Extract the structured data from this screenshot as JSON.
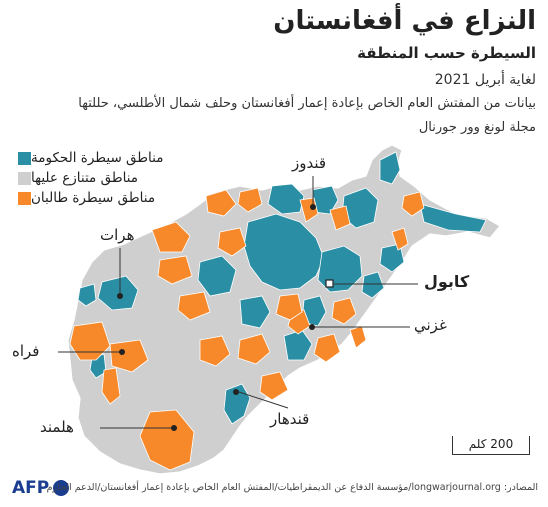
{
  "title": "النزاع في أفغانستان",
  "subtitle": "السيطرة حسب المنطقة",
  "date_text": "لغاية أبريل 2021",
  "source_text_line1": "بيانات من المفتش العام الخاص بإعادة إعمار أفغانستان وحلف شمال الأطلسي، حللتها",
  "source_text_line2": "مجلة لونغ وور جورنال",
  "legend": {
    "items": [
      {
        "label": "مناطق سيطرة الحكومة",
        "color": "#2a8fa4"
      },
      {
        "label": "مناطق متنازع عليها",
        "color": "#cfcfcf"
      },
      {
        "label": "مناطق سيطرة طالبان",
        "color": "#f7892a"
      }
    ]
  },
  "cities": {
    "kunduz": "قندوز",
    "herat": "هرات",
    "kabul": "كابول",
    "ghazni": "غزني",
    "farah": "فراه",
    "kandahar": "قندهار",
    "helmand": "هلمند"
  },
  "scale_text": "200 كلم",
  "afp_logo": "AFP",
  "sources_text": "المصادر: longwarjournal.org/مؤسسة الدفاع عن الديمقراطيات/المفتش العام الخاص بإعادة إعمار أفغانستان/الدعم الحازم",
  "colors": {
    "government": "#2a8fa4",
    "contested": "#cfcfcf",
    "taliban": "#f7892a",
    "border": "#ffffff"
  }
}
